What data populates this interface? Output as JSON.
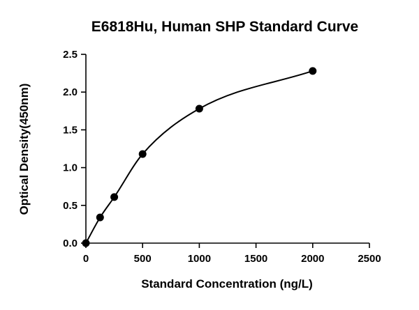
{
  "chart_data": {
    "type": "scatter",
    "title": "E6818Hu, Human SHP Standard Curve",
    "xlabel": "Standard Concentration (ng/L)",
    "ylabel": "Optical Density(450nm)",
    "xlim": [
      0,
      2500
    ],
    "ylim": [
      0,
      2.5
    ],
    "x_ticks": [
      "0",
      "500",
      "1000",
      "1500",
      "2000",
      "2500"
    ],
    "y_ticks": [
      "0.0",
      "0.5",
      "1.0",
      "1.5",
      "2.0",
      "2.5"
    ],
    "grid": false,
    "legend": "none",
    "fit": "smooth curve through points",
    "series": [
      {
        "points": [
          {
            "x": 0,
            "y": 0.0
          },
          {
            "x": 125,
            "y": 0.34
          },
          {
            "x": 250,
            "y": 0.61
          },
          {
            "x": 500,
            "y": 1.18
          },
          {
            "x": 1000,
            "y": 1.78
          },
          {
            "x": 2000,
            "y": 2.28
          }
        ],
        "color": "#000000"
      }
    ]
  }
}
